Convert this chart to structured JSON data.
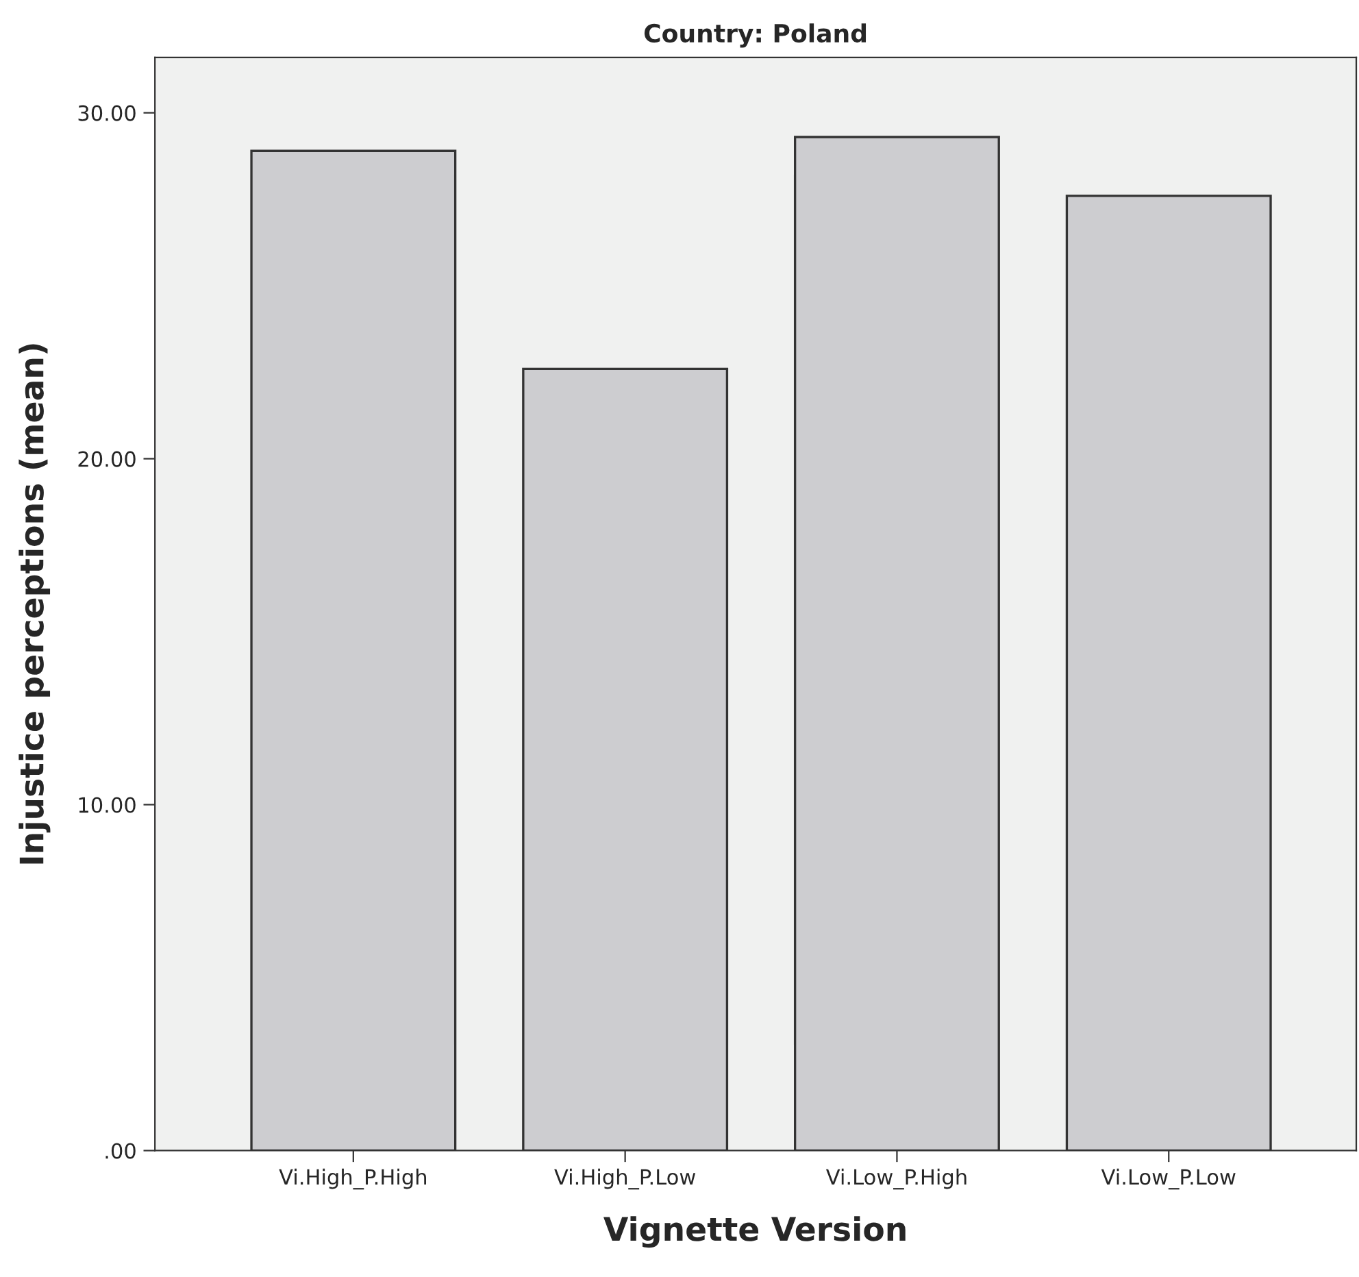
{
  "chart_data": {
    "type": "bar",
    "title": "Country: Poland",
    "xlabel": "Vignette Version",
    "ylabel": "Injustice perceptions (mean)",
    "categories": [
      "Vi.High_P.High",
      "Vi.High_P.Low",
      "Vi.Low_P.High",
      "Vi.Low_P.Low"
    ],
    "values": [
      28.9,
      22.6,
      29.3,
      27.6
    ],
    "color": "#cdcdd0",
    "ylim": [
      0,
      31.6
    ],
    "yticks": [
      {
        "value": 0,
        "label": ".00"
      },
      {
        "value": 10,
        "label": "10.00"
      },
      {
        "value": 20,
        "label": "20.00"
      },
      {
        "value": 30,
        "label": "30.00"
      }
    ],
    "grid": false
  }
}
